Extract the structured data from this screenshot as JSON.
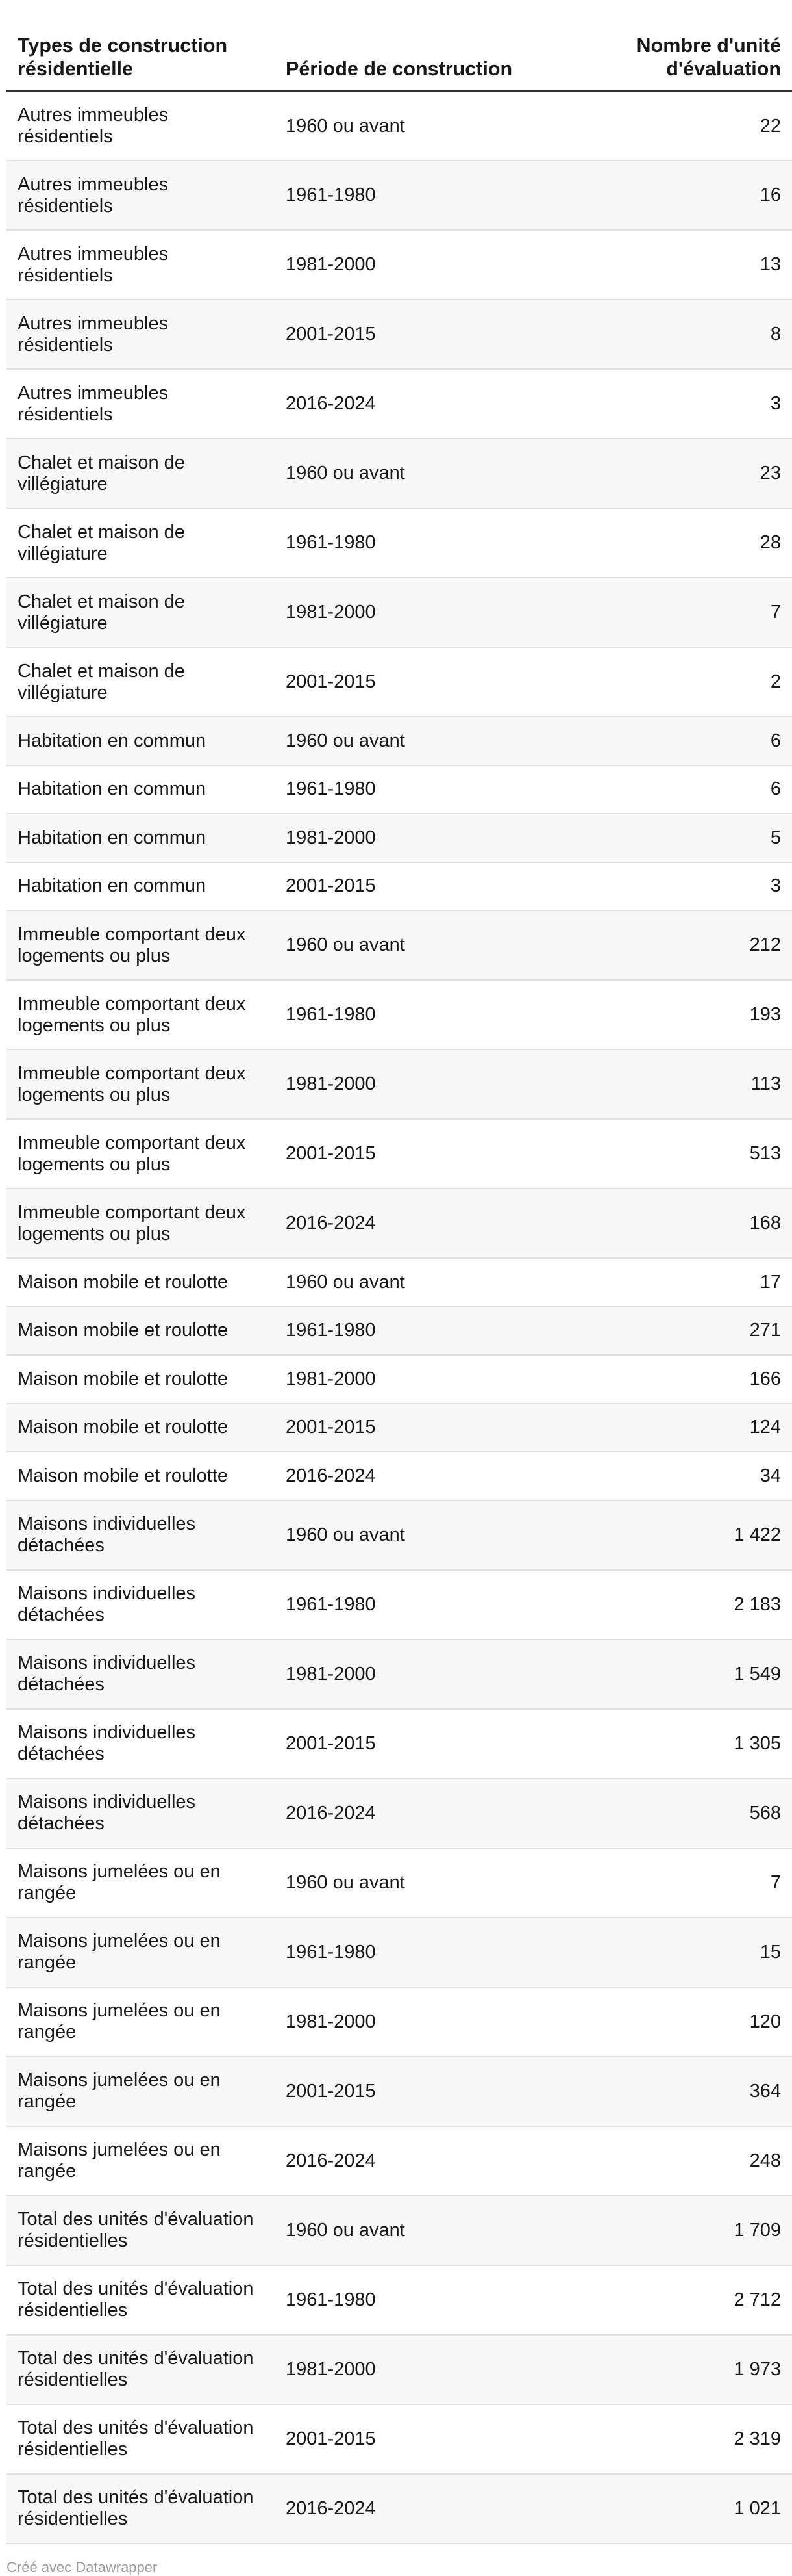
{
  "table": {
    "headers": {
      "type": "Types de construction résidentielle",
      "period": "Période de construction",
      "count": "Nombre d'unité d'évaluation"
    },
    "rows": [
      {
        "type": "Autres immeubles résidentiels",
        "period": "1960 ou avant",
        "count": "22"
      },
      {
        "type": "Autres immeubles résidentiels",
        "period": "1961-1980",
        "count": "16"
      },
      {
        "type": "Autres immeubles résidentiels",
        "period": "1981-2000",
        "count": "13"
      },
      {
        "type": "Autres immeubles résidentiels",
        "period": "2001-2015",
        "count": "8"
      },
      {
        "type": "Autres immeubles résidentiels",
        "period": "2016-2024",
        "count": "3"
      },
      {
        "type": "Chalet et maison de villégiature",
        "period": "1960 ou avant",
        "count": "23"
      },
      {
        "type": "Chalet et maison de villégiature",
        "period": "1961-1980",
        "count": "28"
      },
      {
        "type": "Chalet et maison de villégiature",
        "period": "1981-2000",
        "count": "7"
      },
      {
        "type": "Chalet et maison de villégiature",
        "period": "2001-2015",
        "count": "2"
      },
      {
        "type": "Habitation en commun",
        "period": "1960 ou avant",
        "count": "6"
      },
      {
        "type": "Habitation en commun",
        "period": "1961-1980",
        "count": "6"
      },
      {
        "type": "Habitation en commun",
        "period": "1981-2000",
        "count": "5"
      },
      {
        "type": "Habitation en commun",
        "period": "2001-2015",
        "count": "3"
      },
      {
        "type": "Immeuble comportant deux logements ou plus",
        "period": "1960 ou avant",
        "count": "212"
      },
      {
        "type": "Immeuble comportant deux logements ou plus",
        "period": "1961-1980",
        "count": "193"
      },
      {
        "type": "Immeuble comportant deux logements ou plus",
        "period": "1981-2000",
        "count": "113"
      },
      {
        "type": "Immeuble comportant deux logements ou plus",
        "period": "2001-2015",
        "count": "513"
      },
      {
        "type": "Immeuble comportant deux logements ou plus",
        "period": "2016-2024",
        "count": "168"
      },
      {
        "type": "Maison mobile et roulotte",
        "period": "1960 ou avant",
        "count": "17"
      },
      {
        "type": "Maison mobile et roulotte",
        "period": "1961-1980",
        "count": "271"
      },
      {
        "type": "Maison mobile et roulotte",
        "period": "1981-2000",
        "count": "166"
      },
      {
        "type": "Maison mobile et roulotte",
        "period": "2001-2015",
        "count": "124"
      },
      {
        "type": "Maison mobile et roulotte",
        "period": "2016-2024",
        "count": "34"
      },
      {
        "type": "Maisons individuelles détachées",
        "period": "1960 ou avant",
        "count": "1 422"
      },
      {
        "type": "Maisons individuelles détachées",
        "period": "1961-1980",
        "count": "2 183"
      },
      {
        "type": "Maisons individuelles détachées",
        "period": "1981-2000",
        "count": "1 549"
      },
      {
        "type": "Maisons individuelles détachées",
        "period": "2001-2015",
        "count": "1 305"
      },
      {
        "type": "Maisons individuelles détachées",
        "period": "2016-2024",
        "count": "568"
      },
      {
        "type": "Maisons jumelées ou en rangée",
        "period": "1960 ou avant",
        "count": "7"
      },
      {
        "type": "Maisons jumelées ou en rangée",
        "period": "1961-1980",
        "count": "15"
      },
      {
        "type": "Maisons jumelées ou en rangée",
        "period": "1981-2000",
        "count": "120"
      },
      {
        "type": "Maisons jumelées ou en rangée",
        "period": "2001-2015",
        "count": "364"
      },
      {
        "type": "Maisons jumelées ou en rangée",
        "period": "2016-2024",
        "count": "248"
      },
      {
        "type": "Total des unités d'évaluation résidentielles",
        "period": "1960 ou avant",
        "count": "1 709"
      },
      {
        "type": "Total des unités d'évaluation résidentielles",
        "period": "1961-1980",
        "count": "2 712"
      },
      {
        "type": "Total des unités d'évaluation résidentielles",
        "period": "1981-2000",
        "count": "1 973"
      },
      {
        "type": "Total des unités d'évaluation résidentielles",
        "period": "2001-2015",
        "count": "2 319"
      },
      {
        "type": "Total des unités d'évaluation résidentielles",
        "period": "2016-2024",
        "count": "1 021"
      }
    ]
  },
  "footer": {
    "credit": "Créé avec Datawrapper"
  },
  "colors": {
    "text": "#181818",
    "header_rule": "#333333",
    "row_stripe": "#f7f7f7",
    "row_rule": "#e0e0e0",
    "footer_text": "#9a9a9a"
  }
}
